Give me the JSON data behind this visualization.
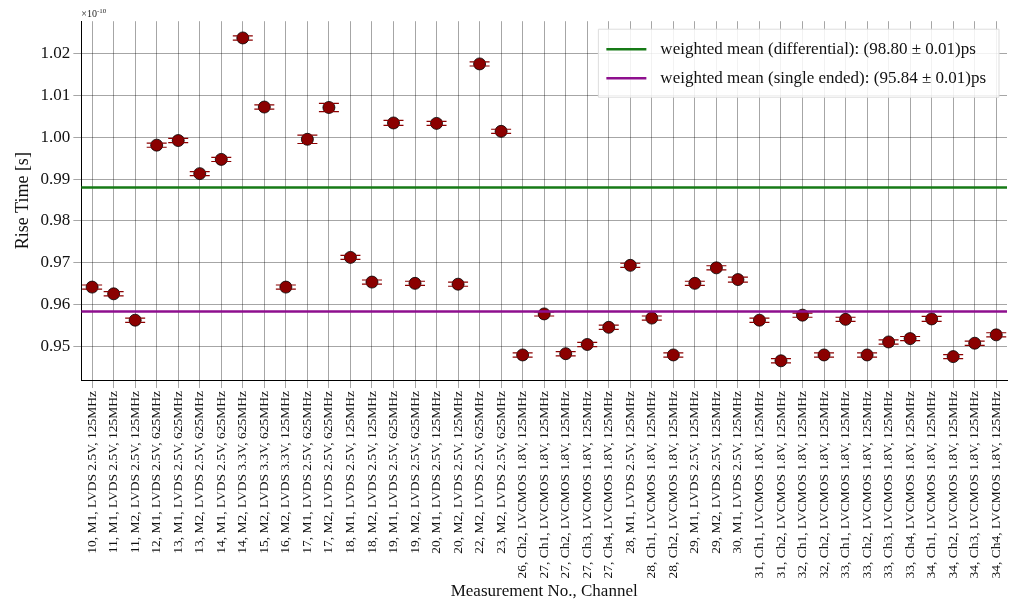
{
  "chart_data": {
    "type": "scatter",
    "xlabel": "Measurement No., Channel",
    "ylabel": "Rise Time [s]",
    "annotations": [
      "×10$^{-10}$"
    ],
    "categories": [
      "10, M1, LVDS 2.5V, 125MHz",
      "11, M1, LVDS 2.5V, 125MHz",
      "11, M2, LVDS 2.5V, 125MHz",
      "12, M1, LVDS 2.5V, 625MHz",
      "13, M1, LVDS 2.5V, 625MHz",
      "13, M2, LVDS 2.5V, 625MHz",
      "14, M1, LVDS 2.5V, 625MHz",
      "14, M2, LVDS 3.3V, 625MHz",
      "15, M2, LVDS 3.3V, 625MHz",
      "16, M2, LVDS 3.3V, 125MHz",
      "17, M1, LVDS 2.5V, 625MHz",
      "17, M2, LVDS 2.5V, 625MHz",
      "18, M1, LVDS 2.5V, 125MHz",
      "18, M2, LVDS 2.5V, 125MHz",
      "19, M1, LVDS 2.5V, 625MHz",
      "19, M2, LVDS 2.5V, 625MHz",
      "20, M1, LVDS 2.5V, 125MHz",
      "20, M2, LVDS 2.5V, 125MHz",
      "22, M2, LVDS 2.5V, 625MHz",
      "23, M2, LVDS 2.5V, 625MHz",
      "26, Ch2, LVCMOS 1.8V, 125MHz",
      "27, Ch1, LVCMOS 1.8V, 125MHz",
      "27, Ch2, LVCMOS 1.8V, 125MHz",
      "27, Ch3, LVCMOS 1.8V, 125MHz",
      "27, Ch4, LVCMOS 1.8V, 125MHz",
      "28, M1, LVDS 2.5V, 125MHz",
      "28, Ch1, LVCMOS 1.8V, 125MHz",
      "28, Ch2, LVCMOS 1.8V, 125MHz",
      "29, M1, LVDS 2.5V, 125MHz",
      "29, M2, LVDS 2.5V, 125MHz",
      "30, M1, LVDS 2.5V, 125MHz",
      "31, Ch1, LVCMOS 1.8V, 125MHz",
      "31, Ch2, LVCMOS 1.8V, 125MHz",
      "32, Ch1, LVCMOS 1.8V, 125MHz",
      "32, Ch2, LVCMOS 1.8V, 125MHz",
      "33, Ch1, LVCMOS 1.8V, 125MHz",
      "33, Ch2, LVCMOS 1.8V, 125MHz",
      "33, Ch3, LVCMOS 1.8V, 125MHz",
      "33, Ch4, LVCMOS 1.8V, 125MHz",
      "34, Ch1, LVCMOS 1.8V, 125MHz",
      "34, Ch2, LVCMOS 1.8V, 125MHz",
      "34, Ch3, LVCMOS 1.8V, 125MHz",
      "34, Ch4, LVCMOS 1.8V, 125MHz"
    ],
    "series": [
      {
        "color": "#8b0000",
        "values": [
          0.9642,
          0.9626,
          0.9563,
          0.9981,
          0.9992,
          0.9913,
          0.9947,
          1.0237,
          1.0072,
          0.9642,
          0.9995,
          1.0071,
          0.9713,
          0.9654,
          1.0034,
          0.9651,
          1.0033,
          0.9649,
          1.0175,
          1.0014,
          0.948,
          0.9578,
          0.9483,
          0.9505,
          0.9546,
          0.9694,
          0.9568,
          0.948,
          0.9651,
          0.9688,
          0.966,
          0.9563,
          0.9466,
          0.9575,
          0.948,
          0.9565,
          0.948,
          0.9511,
          0.9519,
          0.9566,
          0.9476,
          0.9508,
          0.9528
        ],
        "errors": [
          0.0005,
          0.0005,
          0.0005,
          0.0005,
          0.0005,
          0.0005,
          0.0005,
          0.0005,
          0.0005,
          0.0005,
          0.001,
          0.001,
          0.0005,
          0.0005,
          0.0006,
          0.0005,
          0.0005,
          0.0005,
          0.0005,
          0.0005,
          0.0005,
          0.0005,
          0.0005,
          0.0005,
          0.0005,
          0.0005,
          0.0005,
          0.0005,
          0.0005,
          0.0005,
          0.0006,
          0.0005,
          0.0005,
          0.0005,
          0.0005,
          0.0005,
          0.0005,
          0.0005,
          0.0005,
          0.0006,
          0.0005,
          0.0005,
          0.0005
        ]
      }
    ],
    "marker": "circle",
    "ylim": [
      0.942,
      1.0277
    ],
    "yticks": [
      0.95,
      0.96,
      0.97,
      0.98,
      0.99,
      {
        "value": 1.0,
        "label": "1.00"
      },
      1.01,
      1.02
    ],
    "ref_lines": [
      {
        "axis": "y",
        "value": 0.988,
        "label": "weighted mean (differential): (98.80 ± 0.01)ps",
        "color": "#167a16"
      },
      {
        "axis": "y",
        "value": 0.9584,
        "label": "weighted mean (single ended): (95.84 ± 0.01)ps",
        "color": "#8e0f8e"
      }
    ],
    "grid": true,
    "legend": "top right"
  }
}
